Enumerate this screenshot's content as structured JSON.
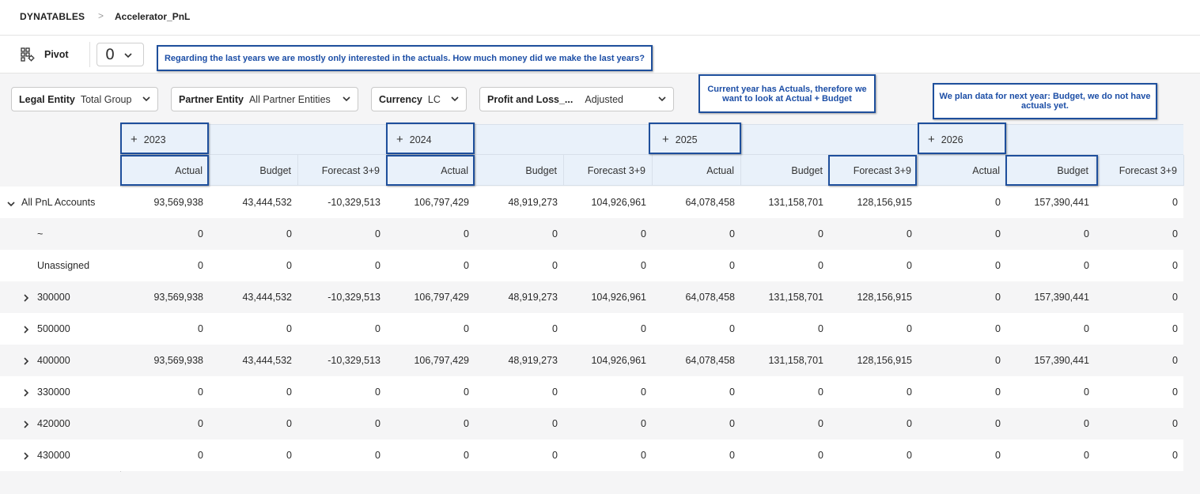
{
  "breadcrumb": {
    "root": "DYNATABLES",
    "separator": ">",
    "page": "Accelerator_PnL"
  },
  "toolbar": {
    "pivot_label": "Pivot",
    "count_value": "0"
  },
  "annotations": {
    "actuals_note": "Regarding the last years we are mostly only interested in the actuals. How much money did we make the last years?",
    "current_year_note": "Current year has Actuals, therefore we want to look at Actual + Budget",
    "next_year_note": "We plan data for next year: Budget, we do not have actuals yet."
  },
  "filters": [
    {
      "label": "Legal Entity",
      "value": "Total Group"
    },
    {
      "label": "Partner Entity",
      "value": "All Partner Entities"
    },
    {
      "label": "Currency",
      "value": "LC"
    },
    {
      "label": "Profit and Loss_...",
      "value": "Adjusted"
    }
  ],
  "years": [
    "2023",
    "2024",
    "2025",
    "2026"
  ],
  "measures": [
    "Actual",
    "Budget",
    "Forecast 3+9"
  ],
  "rows": [
    {
      "label": "All PnL Accounts",
      "expander": "down",
      "values": [
        "93,569,938",
        "43,444,532",
        "-10,329,513",
        "106,797,429",
        "48,919,273",
        "104,926,961",
        "64,078,458",
        "131,158,701",
        "128,156,915",
        "0",
        "157,390,441",
        "0"
      ]
    },
    {
      "label": "~",
      "expander": "none",
      "values": [
        "0",
        "0",
        "0",
        "0",
        "0",
        "0",
        "0",
        "0",
        "0",
        "0",
        "0",
        "0"
      ]
    },
    {
      "label": "Unassigned",
      "expander": "none",
      "values": [
        "0",
        "0",
        "0",
        "0",
        "0",
        "0",
        "0",
        "0",
        "0",
        "0",
        "0",
        "0"
      ]
    },
    {
      "label": "300000",
      "expander": "right",
      "values": [
        "93,569,938",
        "43,444,532",
        "-10,329,513",
        "106,797,429",
        "48,919,273",
        "104,926,961",
        "64,078,458",
        "131,158,701",
        "128,156,915",
        "0",
        "157,390,441",
        "0"
      ]
    },
    {
      "label": "500000",
      "expander": "right",
      "values": [
        "0",
        "0",
        "0",
        "0",
        "0",
        "0",
        "0",
        "0",
        "0",
        "0",
        "0",
        "0"
      ]
    },
    {
      "label": "400000",
      "expander": "right",
      "values": [
        "93,569,938",
        "43,444,532",
        "-10,329,513",
        "106,797,429",
        "48,919,273",
        "104,926,961",
        "64,078,458",
        "131,158,701",
        "128,156,915",
        "0",
        "157,390,441",
        "0"
      ]
    },
    {
      "label": "330000",
      "expander": "right",
      "values": [
        "0",
        "0",
        "0",
        "0",
        "0",
        "0",
        "0",
        "0",
        "0",
        "0",
        "0",
        "0"
      ]
    },
    {
      "label": "420000",
      "expander": "right",
      "values": [
        "0",
        "0",
        "0",
        "0",
        "0",
        "0",
        "0",
        "0",
        "0",
        "0",
        "0",
        "0"
      ]
    },
    {
      "label": "430000",
      "expander": "right",
      "values": [
        "0",
        "0",
        "0",
        "0",
        "0",
        "0",
        "0",
        "0",
        "0",
        "0",
        "0",
        "0"
      ]
    }
  ],
  "colors": {
    "accent": "#1e4f9c",
    "header_bg": "#e9f1fa",
    "alt_row": "#f5f5f6"
  }
}
